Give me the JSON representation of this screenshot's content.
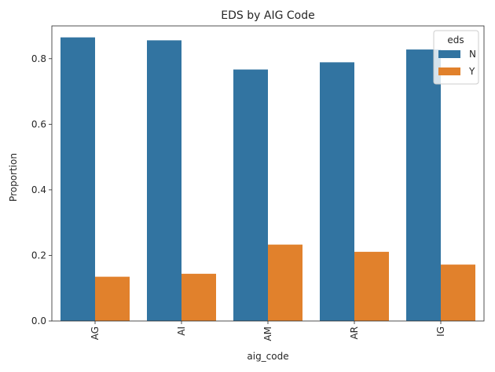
{
  "chart_data": {
    "type": "bar",
    "title": "EDS by AIG Code",
    "xlabel": "aig_code",
    "ylabel": "Proportion",
    "categories": [
      "AG",
      "AI",
      "AM",
      "AR",
      "IG"
    ],
    "series": [
      {
        "name": "N",
        "color": "#3274a1",
        "values": [
          0.865,
          0.856,
          0.767,
          0.789,
          0.828
        ]
      },
      {
        "name": "Y",
        "color": "#e1812c",
        "values": [
          0.135,
          0.144,
          0.233,
          0.211,
          0.172
        ]
      }
    ],
    "ylim": [
      0,
      0.9
    ],
    "yticks": [
      "0.0",
      "0.2",
      "0.4",
      "0.6",
      "0.8"
    ],
    "grid": false,
    "legend": {
      "title": "eds",
      "placement": "top-right"
    }
  }
}
